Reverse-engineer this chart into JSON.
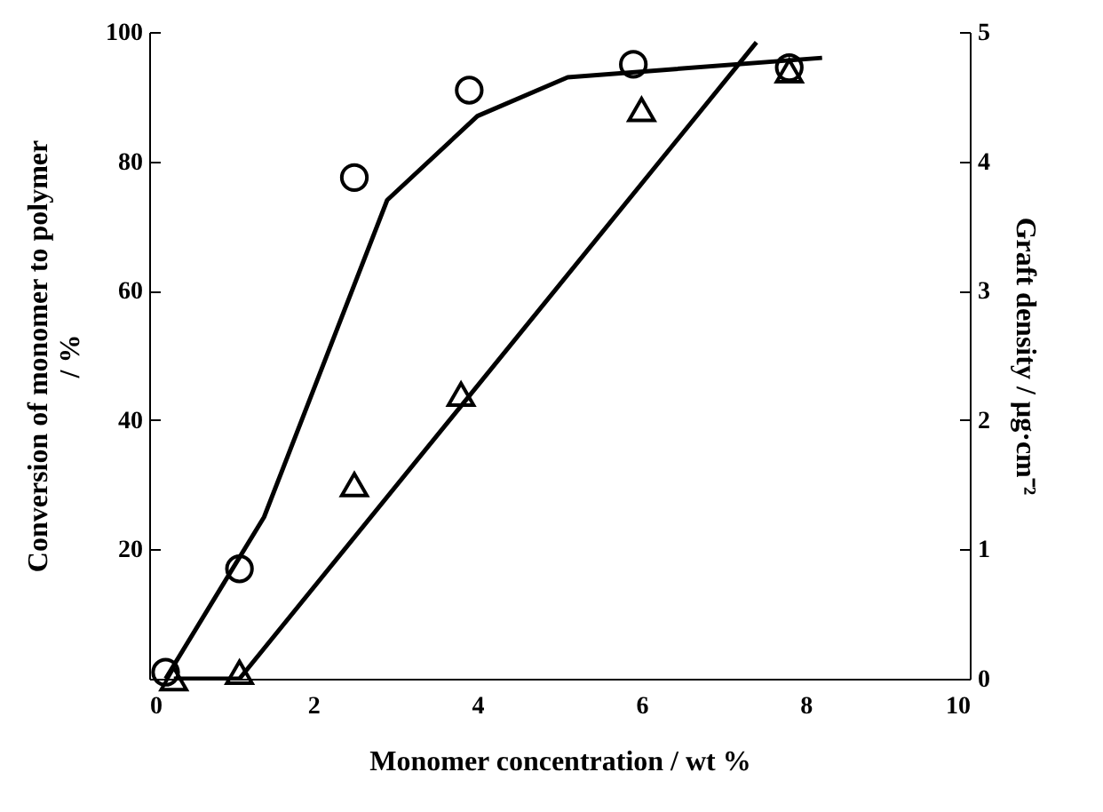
{
  "chart_data": {
    "type": "scatter",
    "xlabel": "Monomer concentration / wt %",
    "ylabel": "Conversion of monomer to polymer\n/ %",
    "y2label": "Graft density / µg·cm⁻²",
    "xlim": [
      0,
      10
    ],
    "xticks": [
      0,
      2,
      4,
      6,
      8,
      10
    ],
    "ylim": [
      0,
      100
    ],
    "yticks": [
      20,
      40,
      60,
      80,
      100
    ],
    "y2lim": [
      0,
      5
    ],
    "y2ticks": [
      0,
      1,
      2,
      3,
      4,
      5
    ],
    "grid": false,
    "legend": false,
    "series": [
      {
        "type": "line",
        "color": "#000000",
        "x": [
          0.2,
          1.4,
          2.9,
          4.0,
          5.1,
          8.2
        ],
        "values": [
          0,
          25,
          74,
          87,
          93,
          96
        ]
      },
      {
        "type": "line",
        "axis": "y2",
        "color": "#000000",
        "x": [
          0.3,
          1.1,
          7.4
        ],
        "values": [
          0,
          0,
          4.92
        ]
      },
      {
        "type": "scatter",
        "marker": "circle",
        "color": "#000000",
        "x": [
          0.2,
          1.1,
          2.5,
          3.9,
          5.9,
          7.8
        ],
        "values": [
          1,
          17,
          77.5,
          91,
          95,
          94.5
        ]
      },
      {
        "type": "scatter",
        "marker": "triangle",
        "axis": "y2",
        "color": "#000000",
        "x": [
          0.3,
          1.1,
          2.5,
          3.8,
          6.0,
          7.8
        ],
        "values": [
          0,
          0.05,
          1.5,
          2.2,
          4.4,
          4.7
        ]
      }
    ]
  }
}
